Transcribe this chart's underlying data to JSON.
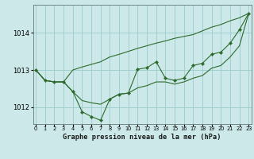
{
  "bg_color": "#cce8e8",
  "plot_bg_color": "#cce8e8",
  "grid_color": "#99cccc",
  "line_color": "#2d6b2d",
  "xlabel": "Graphe pression niveau de la mer (hPa)",
  "ylim": [
    1011.55,
    1014.75
  ],
  "xlim": [
    -0.3,
    23.3
  ],
  "yticks": [
    1012,
    1013,
    1014
  ],
  "xticks": [
    0,
    1,
    2,
    3,
    4,
    5,
    6,
    7,
    8,
    9,
    10,
    11,
    12,
    13,
    14,
    15,
    16,
    17,
    18,
    19,
    20,
    21,
    22,
    23
  ],
  "main_y": [
    1013.0,
    1012.72,
    1012.68,
    1012.68,
    1012.42,
    1011.88,
    1011.75,
    1011.65,
    1012.22,
    1012.35,
    1012.38,
    1013.02,
    1013.06,
    1013.22,
    1012.78,
    1012.72,
    1012.78,
    1013.12,
    1013.18,
    1013.42,
    1013.48,
    1013.72,
    1014.08,
    1014.52
  ],
  "upper_y": [
    1013.0,
    1012.72,
    1012.68,
    1012.68,
    1013.0,
    1013.08,
    1013.15,
    1013.22,
    1013.35,
    1013.42,
    1013.5,
    1013.58,
    1013.65,
    1013.72,
    1013.78,
    1013.85,
    1013.9,
    1013.95,
    1014.05,
    1014.15,
    1014.22,
    1014.32,
    1014.4,
    1014.52
  ],
  "lower_y": [
    1013.0,
    1012.72,
    1012.68,
    1012.68,
    1012.42,
    1012.18,
    1012.12,
    1012.08,
    1012.22,
    1012.35,
    1012.38,
    1012.52,
    1012.58,
    1012.68,
    1012.68,
    1012.62,
    1012.68,
    1012.78,
    1012.85,
    1013.05,
    1013.12,
    1013.35,
    1013.65,
    1014.52
  ]
}
